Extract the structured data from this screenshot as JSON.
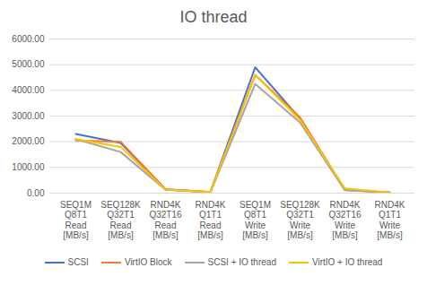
{
  "chart_data": {
    "type": "line",
    "title": "IO thread",
    "categories": [
      "SEQ1M Q8T1 Read [MB/s]",
      "SEQ128K Q32T1 Read [MB/s]",
      "RND4K Q32T16 Read [MB/s]",
      "RND4K Q1T1 Read [MB/s]",
      "SEQ1M Q8T1 Write [MB/s]",
      "SEQ128K Q32T1 Write [MB/s]",
      "RND4K Q32T16 Write [MB/s]",
      "RND4K Q1T1 Write [MB/s]"
    ],
    "series": [
      {
        "name": "SCSI",
        "color": "#4472c4",
        "values": [
          2300,
          1950,
          150,
          40,
          4900,
          2900,
          120,
          30
        ]
      },
      {
        "name": "VirtIO Block",
        "color": "#ed7d31",
        "values": [
          2050,
          2000,
          150,
          40,
          4600,
          2950,
          130,
          30
        ]
      },
      {
        "name": "SCSI + IO thread",
        "color": "#a5a5a5",
        "values": [
          2100,
          1600,
          130,
          35,
          4250,
          2750,
          110,
          30
        ]
      },
      {
        "name": "VirtIO + IO thread",
        "color": "#ffc000",
        "values": [
          2100,
          1800,
          140,
          40,
          4600,
          2850,
          180,
          30
        ]
      }
    ],
    "ylim": [
      0,
      6000
    ],
    "yticks": [
      {
        "value": 0,
        "label": "0.00"
      },
      {
        "value": 1000,
        "label": "1000.00"
      },
      {
        "value": 2000,
        "label": "2000.00"
      },
      {
        "value": 3000,
        "label": "3000.00"
      },
      {
        "value": 4000,
        "label": "4000.00"
      },
      {
        "value": 5000,
        "label": "5000.00"
      },
      {
        "value": 6000,
        "label": "6000.00"
      }
    ],
    "grid": true,
    "legend": "bottom"
  }
}
